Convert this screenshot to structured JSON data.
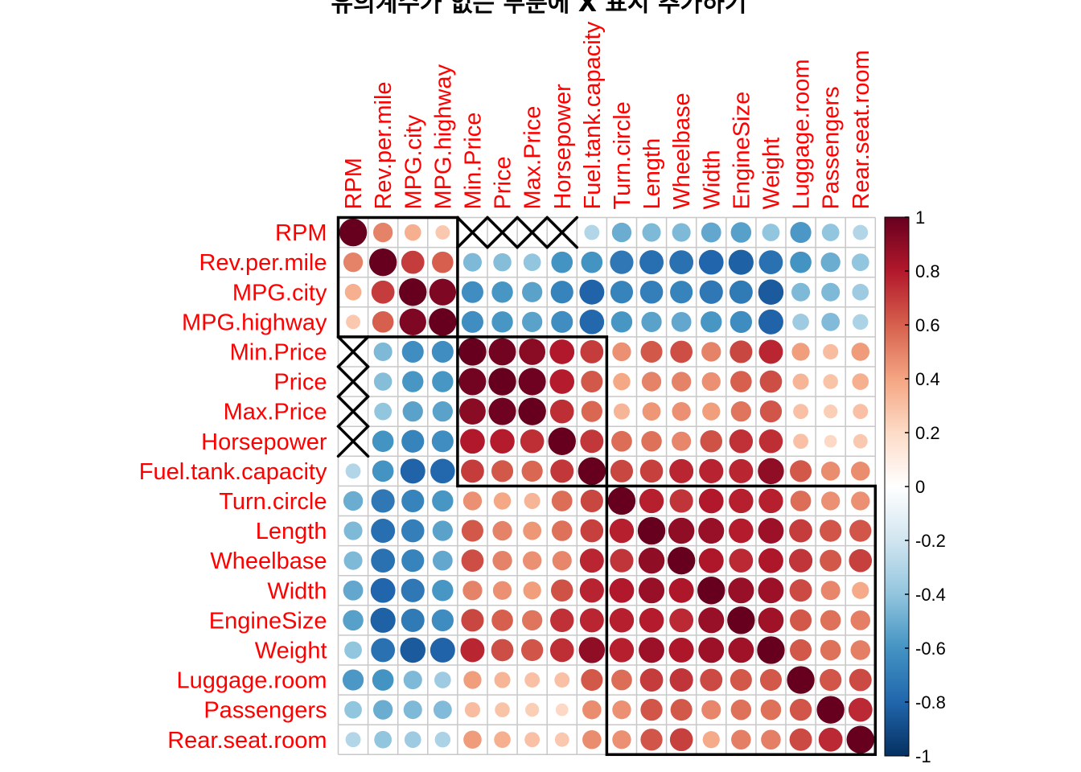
{
  "chart_data": {
    "type": "heatmap",
    "method": "circle",
    "title": "유의계수가 없는 부분에 X 표시 추가하기",
    "variables": [
      "RPM",
      "Rev.per.mile",
      "MPG.city",
      "MPG.highway",
      "Min.Price",
      "Price",
      "Max.Price",
      "Horsepower",
      "Fuel.tank.capacity",
      "Turn.circle",
      "Length",
      "Wheelbase",
      "Width",
      "EngineSize",
      "Weight",
      "Luggage.room",
      "Passengers",
      "Rear.seat.room"
    ],
    "matrix": [
      [
        1.0,
        0.5,
        0.36,
        0.27,
        -0.04,
        -0.04,
        -0.05,
        0.04,
        -0.3,
        -0.5,
        -0.45,
        -0.45,
        -0.52,
        -0.55,
        -0.4,
        -0.58,
        -0.4,
        -0.3
      ],
      [
        0.5,
        1.0,
        0.7,
        0.6,
        -0.45,
        -0.43,
        -0.4,
        -0.6,
        -0.6,
        -0.72,
        -0.76,
        -0.75,
        -0.8,
        -0.82,
        -0.75,
        -0.6,
        -0.5,
        -0.4
      ],
      [
        0.36,
        0.7,
        1.0,
        0.94,
        -0.62,
        -0.59,
        -0.54,
        -0.67,
        -0.81,
        -0.67,
        -0.69,
        -0.67,
        -0.72,
        -0.71,
        -0.84,
        -0.45,
        -0.45,
        -0.36
      ],
      [
        0.27,
        0.6,
        0.94,
        1.0,
        -0.62,
        -0.59,
        -0.54,
        -0.62,
        -0.79,
        -0.59,
        -0.54,
        -0.52,
        -0.59,
        -0.63,
        -0.81,
        -0.36,
        -0.44,
        -0.32
      ],
      [
        -0.04,
        -0.45,
        -0.62,
        -0.62,
        1.0,
        0.97,
        0.91,
        0.8,
        0.7,
        0.46,
        0.62,
        0.65,
        0.5,
        0.67,
        0.76,
        0.42,
        0.31,
        0.43
      ],
      [
        -0.04,
        -0.43,
        -0.59,
        -0.59,
        0.97,
        1.0,
        0.98,
        0.79,
        0.62,
        0.39,
        0.5,
        0.5,
        0.46,
        0.6,
        0.65,
        0.34,
        0.29,
        0.36
      ],
      [
        -0.05,
        -0.4,
        -0.54,
        -0.54,
        0.91,
        0.98,
        1.0,
        0.74,
        0.58,
        0.34,
        0.44,
        0.46,
        0.42,
        0.54,
        0.63,
        0.3,
        0.25,
        0.3
      ],
      [
        0.04,
        -0.6,
        -0.67,
        -0.62,
        0.8,
        0.79,
        0.74,
        1.0,
        0.71,
        0.56,
        0.55,
        0.49,
        0.64,
        0.73,
        0.74,
        0.3,
        0.21,
        0.27
      ],
      [
        -0.3,
        -0.6,
        -0.81,
        -0.79,
        0.7,
        0.62,
        0.58,
        0.71,
        1.0,
        0.67,
        0.69,
        0.76,
        0.77,
        0.76,
        0.89,
        0.62,
        0.47,
        0.47
      ],
      [
        -0.5,
        -0.72,
        -0.67,
        -0.59,
        0.46,
        0.39,
        0.34,
        0.56,
        0.67,
        1.0,
        0.78,
        0.72,
        0.8,
        0.78,
        0.78,
        0.56,
        0.46,
        0.46
      ],
      [
        -0.45,
        -0.76,
        -0.69,
        -0.54,
        0.62,
        0.5,
        0.44,
        0.55,
        0.69,
        0.78,
        1.0,
        0.89,
        0.87,
        0.79,
        0.86,
        0.7,
        0.63,
        0.63
      ],
      [
        -0.45,
        -0.75,
        -0.67,
        -0.52,
        0.65,
        0.5,
        0.46,
        0.49,
        0.76,
        0.72,
        0.89,
        1.0,
        0.81,
        0.75,
        0.81,
        0.72,
        0.62,
        0.69
      ],
      [
        -0.52,
        -0.8,
        -0.72,
        -0.59,
        0.5,
        0.46,
        0.42,
        0.64,
        0.77,
        0.8,
        0.87,
        0.81,
        1.0,
        0.87,
        0.86,
        0.66,
        0.49,
        0.38
      ],
      [
        -0.55,
        -0.82,
        -0.71,
        -0.63,
        0.67,
        0.6,
        0.54,
        0.73,
        0.76,
        0.78,
        0.79,
        0.75,
        0.87,
        1.0,
        0.85,
        0.62,
        0.55,
        0.51
      ],
      [
        -0.4,
        -0.75,
        -0.84,
        -0.81,
        0.76,
        0.65,
        0.63,
        0.74,
        0.89,
        0.78,
        0.86,
        0.81,
        0.86,
        0.85,
        1.0,
        0.62,
        0.55,
        0.51
      ],
      [
        -0.58,
        -0.6,
        -0.45,
        -0.36,
        0.42,
        0.34,
        0.3,
        0.3,
        0.62,
        0.56,
        0.7,
        0.72,
        0.66,
        0.62,
        0.62,
        1.0,
        0.63,
        0.66
      ],
      [
        -0.4,
        -0.5,
        -0.45,
        -0.44,
        0.31,
        0.29,
        0.25,
        0.21,
        0.47,
        0.46,
        0.63,
        0.62,
        0.49,
        0.55,
        0.55,
        0.63,
        1.0,
        0.75
      ],
      [
        -0.3,
        -0.4,
        -0.36,
        -0.32,
        0.43,
        0.36,
        0.3,
        0.27,
        0.47,
        0.46,
        0.63,
        0.69,
        0.38,
        0.51,
        0.51,
        0.66,
        0.75,
        1.0
      ]
    ],
    "insignificant_cells": [
      [
        0,
        4
      ],
      [
        0,
        5
      ],
      [
        0,
        6
      ],
      [
        0,
        7
      ],
      [
        4,
        0
      ],
      [
        5,
        0
      ],
      [
        6,
        0
      ],
      [
        7,
        0
      ]
    ],
    "clusters": [
      [
        0,
        3
      ],
      [
        4,
        8
      ],
      [
        9,
        17
      ]
    ],
    "colorbar": {
      "range": [
        -1,
        1
      ],
      "tick_labels": [
        "1",
        "0.8",
        "0.6",
        "0.4",
        "0.2",
        "0",
        "-0.2",
        "-0.4",
        "-0.6",
        "-0.8",
        "-1"
      ],
      "tick_values": [
        1,
        0.8,
        0.6,
        0.4,
        0.2,
        0,
        -0.2,
        -0.4,
        -0.6,
        -0.8,
        -1
      ]
    },
    "colors": {
      "scale": [
        "#67001F",
        "#B2182B",
        "#D6604D",
        "#F4A582",
        "#FDDBC7",
        "#FFFFFF",
        "#D1E5F0",
        "#92C5DE",
        "#4393C3",
        "#2166AC",
        "#053061"
      ],
      "label": "#FF0000",
      "grid": "#C8C8C8"
    },
    "legend": "right"
  }
}
